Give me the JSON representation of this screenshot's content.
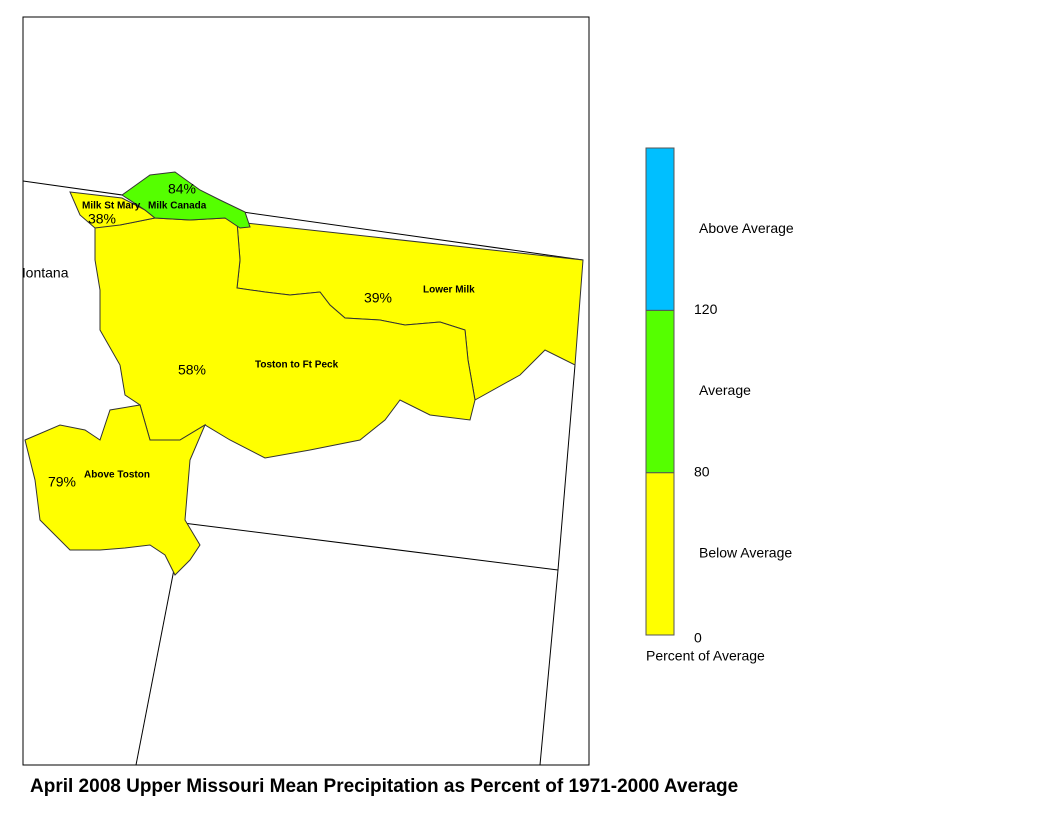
{
  "title": "April 2008 Upper Missouri Mean Precipitation as Percent of 1971-2000 Average",
  "state_label": "Montana",
  "regions": [
    {
      "name": "Milk Canada",
      "percent": "84%",
      "color": "#55ff00"
    },
    {
      "name": "Milk St Mary",
      "percent": "38%",
      "color": "#ffff00"
    },
    {
      "name": "Lower Milk",
      "percent": "39%",
      "color": "#ffff00"
    },
    {
      "name": "Toston to Ft Peck",
      "percent": "58%",
      "color": "#ffff00"
    },
    {
      "name": "Above Toston",
      "percent": "79%",
      "color": "#ffff00"
    }
  ],
  "legend": {
    "title": "Percent of Average",
    "classes": [
      {
        "label": "Below Average",
        "color": "#ffff00"
      },
      {
        "label": "Average",
        "color": "#55ff00"
      },
      {
        "label": "Above Average",
        "color": "#00bfff"
      }
    ],
    "breaks": [
      0,
      80,
      120
    ]
  }
}
